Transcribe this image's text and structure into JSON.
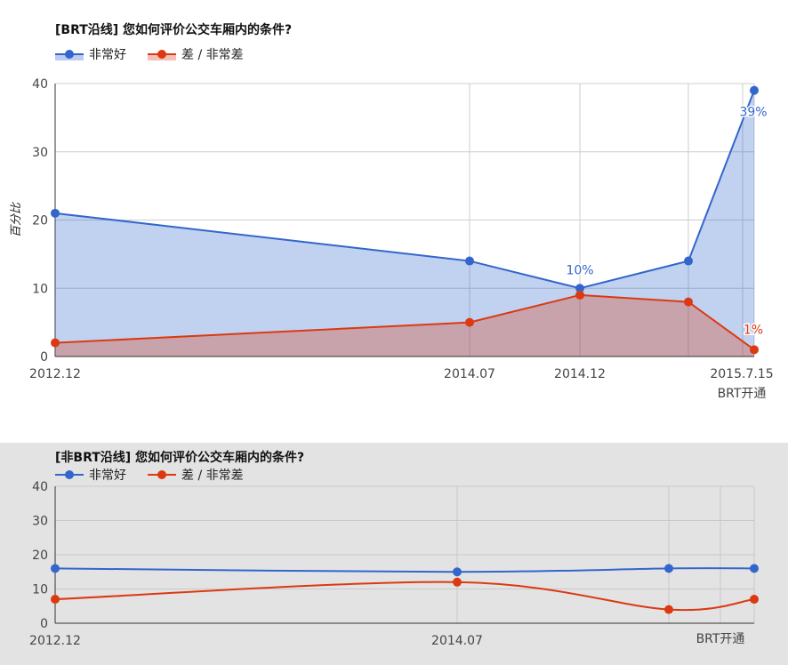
{
  "colors": {
    "good": "#3366cc",
    "bad": "#dc3912"
  },
  "legend": {
    "good": "非常好",
    "bad": "差 / 非常差"
  },
  "chart_data": [
    {
      "type": "area",
      "title": "[BRT沿线] 您如何评价公交车厢内的条件?",
      "ylabel": "百分比",
      "xlabel": "",
      "ylim": [
        0,
        40
      ],
      "yticks": [
        "0",
        "10",
        "20",
        "30",
        "40"
      ],
      "x_tick_labels": [
        "2012.12",
        "2014.07",
        "2014.12",
        "2015.7.15"
      ],
      "annotation": "BRT开通",
      "legend_position": "top-left",
      "grid": true,
      "series": [
        {
          "name": "非常好",
          "values": [
            21,
            14,
            10,
            14,
            39
          ],
          "point_labels": [
            "",
            "",
            "10%",
            "",
            "39%"
          ]
        },
        {
          "name": "差 / 非常差",
          "values": [
            2,
            5,
            9,
            8,
            1
          ],
          "point_labels": [
            "",
            "",
            "",
            "",
            "1%"
          ]
        }
      ]
    },
    {
      "type": "line",
      "title": "[非BRT沿线] 您如何评价公交车厢内的条件?",
      "ylabel": "",
      "xlabel": "",
      "ylim": [
        0,
        40
      ],
      "yticks": [
        "0",
        "10",
        "20",
        "30",
        "40"
      ],
      "x_tick_labels": [
        "2012.12",
        "2014.07"
      ],
      "annotation": "BRT开通",
      "legend_position": "top-left",
      "grid": true,
      "series": [
        {
          "name": "非常好",
          "values": [
            16,
            15,
            16,
            16
          ]
        },
        {
          "name": "差 / 非常差",
          "values": [
            7,
            12,
            4,
            7
          ]
        }
      ]
    }
  ]
}
